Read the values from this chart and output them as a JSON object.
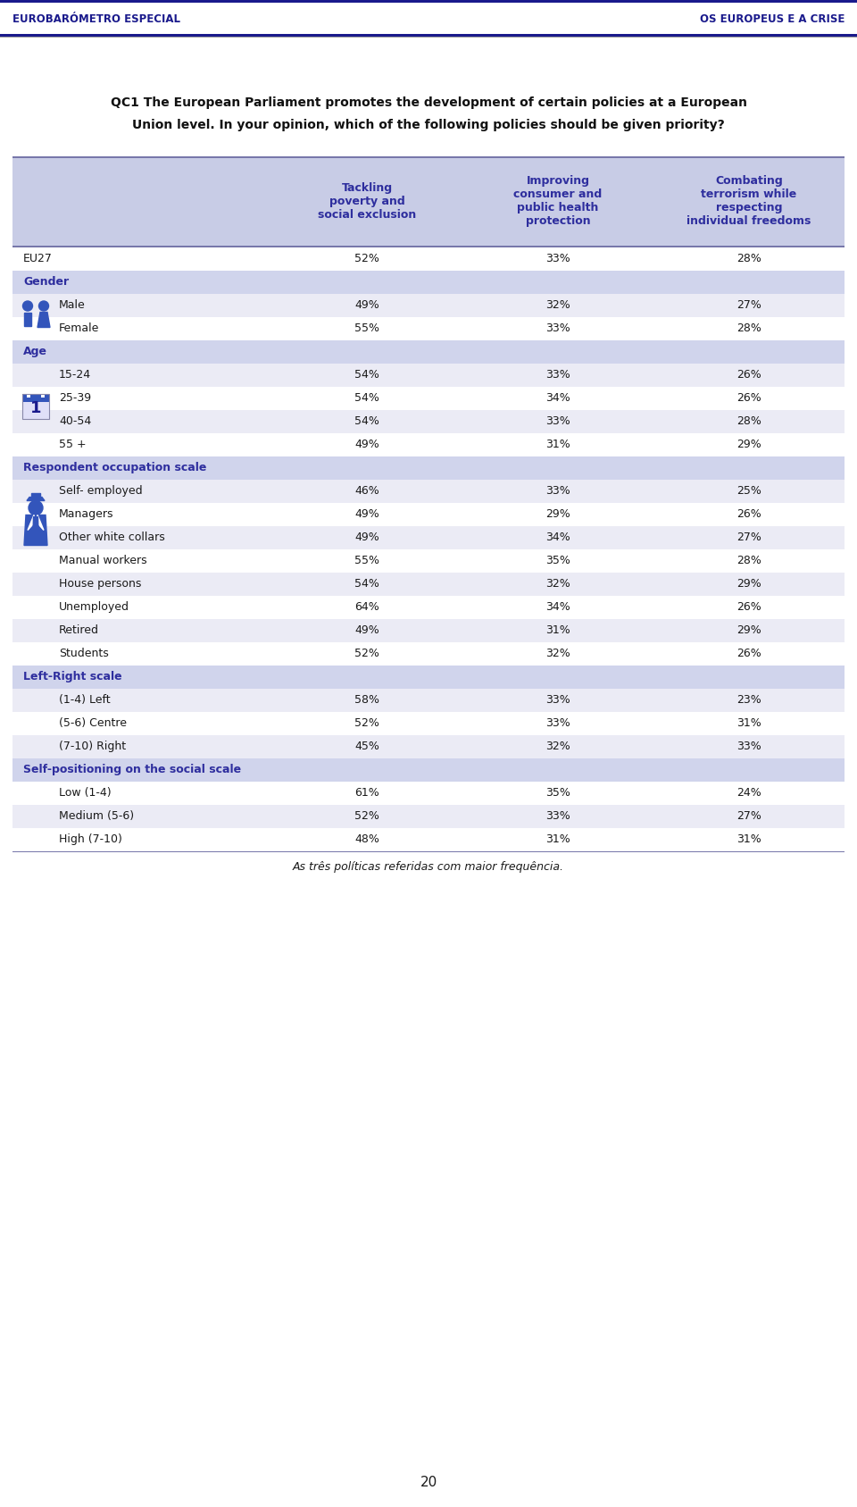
{
  "header_left": "EUROBARÓMETRO ESPECIAL",
  "header_right": "OS EUROPEUS E A CRISE",
  "question_line1": "QC1 The European Parliament promotes the development of certain policies at a European",
  "question_line2": "Union level. In your opinion, which of the following policies should be given priority?",
  "col_headers": [
    "Tackling\npoverty and\nsocial exclusion",
    "Improving\nconsumer and\npublic health\nprotection",
    "Combating\nterrorism while\nrespecting\nindividual freedoms"
  ],
  "rows": [
    {
      "label": "EU27",
      "v1": "52%",
      "v2": "33%",
      "v3": "28%",
      "type": "data",
      "indent": false
    },
    {
      "label": "Gender",
      "v1": "",
      "v2": "",
      "v3": "",
      "type": "section",
      "indent": false
    },
    {
      "label": "Male",
      "v1": "49%",
      "v2": "32%",
      "v3": "27%",
      "type": "data",
      "indent": true
    },
    {
      "label": "Female",
      "v1": "55%",
      "v2": "33%",
      "v3": "28%",
      "type": "data",
      "indent": true
    },
    {
      "label": "Age",
      "v1": "",
      "v2": "",
      "v3": "",
      "type": "section",
      "indent": false
    },
    {
      "label": "15-24",
      "v1": "54%",
      "v2": "33%",
      "v3": "26%",
      "type": "data",
      "indent": true
    },
    {
      "label": "25-39",
      "v1": "54%",
      "v2": "34%",
      "v3": "26%",
      "type": "data",
      "indent": true
    },
    {
      "label": "40-54",
      "v1": "54%",
      "v2": "33%",
      "v3": "28%",
      "type": "data",
      "indent": true
    },
    {
      "label": "55 +",
      "v1": "49%",
      "v2": "31%",
      "v3": "29%",
      "type": "data",
      "indent": true
    },
    {
      "label": "Respondent occupation scale",
      "v1": "",
      "v2": "",
      "v3": "",
      "type": "section",
      "indent": false
    },
    {
      "label": "Self- employed",
      "v1": "46%",
      "v2": "33%",
      "v3": "25%",
      "type": "data",
      "indent": true
    },
    {
      "label": "Managers",
      "v1": "49%",
      "v2": "29%",
      "v3": "26%",
      "type": "data",
      "indent": true
    },
    {
      "label": "Other white collars",
      "v1": "49%",
      "v2": "34%",
      "v3": "27%",
      "type": "data",
      "indent": true
    },
    {
      "label": "Manual workers",
      "v1": "55%",
      "v2": "35%",
      "v3": "28%",
      "type": "data",
      "indent": true
    },
    {
      "label": "House persons",
      "v1": "54%",
      "v2": "32%",
      "v3": "29%",
      "type": "data",
      "indent": true
    },
    {
      "label": "Unemployed",
      "v1": "64%",
      "v2": "34%",
      "v3": "26%",
      "type": "data",
      "indent": true
    },
    {
      "label": "Retired",
      "v1": "49%",
      "v2": "31%",
      "v3": "29%",
      "type": "data",
      "indent": true
    },
    {
      "label": "Students",
      "v1": "52%",
      "v2": "32%",
      "v3": "26%",
      "type": "data",
      "indent": true
    },
    {
      "label": "Left-Right scale",
      "v1": "",
      "v2": "",
      "v3": "",
      "type": "section",
      "indent": false
    },
    {
      "label": "(1-4) Left",
      "v1": "58%",
      "v2": "33%",
      "v3": "23%",
      "type": "data",
      "indent": true
    },
    {
      "label": "(5-6) Centre",
      "v1": "52%",
      "v2": "33%",
      "v3": "31%",
      "type": "data",
      "indent": true
    },
    {
      "label": "(7-10) Right",
      "v1": "45%",
      "v2": "32%",
      "v3": "33%",
      "type": "data",
      "indent": true
    },
    {
      "label": "Self-positioning on the social scale",
      "v1": "",
      "v2": "",
      "v3": "",
      "type": "section",
      "indent": false
    },
    {
      "label": "Low (1-4)",
      "v1": "61%",
      "v2": "35%",
      "v3": "24%",
      "type": "data",
      "indent": true
    },
    {
      "label": "Medium (5-6)",
      "v1": "52%",
      "v2": "33%",
      "v3": "27%",
      "type": "data",
      "indent": true
    },
    {
      "label": "High (7-10)",
      "v1": "48%",
      "v2": "31%",
      "v3": "31%",
      "type": "data",
      "indent": true
    }
  ],
  "footnote": "As três políticas referidas com maior frequência.",
  "page_number": "20",
  "bg_white": "#ffffff",
  "header_bg": "#c8cce6",
  "section_bg": "#d0d4ec",
  "data_bg_even": "#ffffff",
  "data_bg_odd": "#ebebf5",
  "dark_blue": "#1a1a8c",
  "medium_blue": "#2e2e9e",
  "text_color": "#1a1a1a",
  "border_color": "#7777aa",
  "icon_color": "#3355bb",
  "header_line_color": "#333388",
  "gray_line_color": "#999999"
}
